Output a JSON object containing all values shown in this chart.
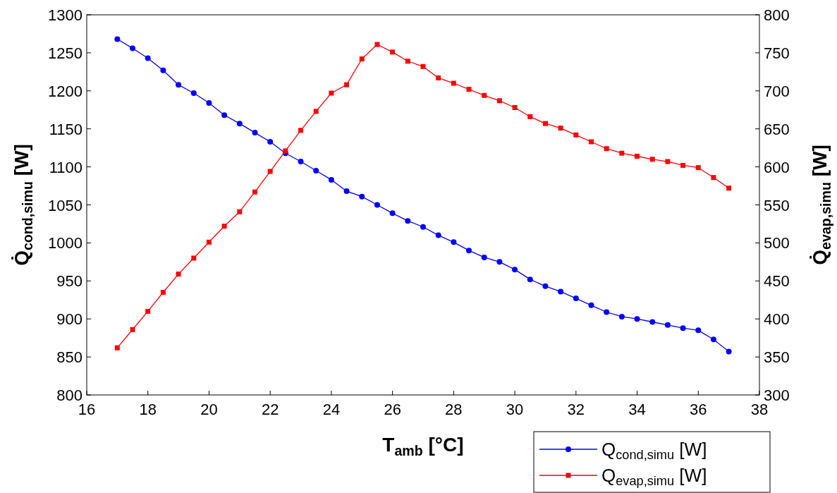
{
  "chart_data": {
    "type": "line",
    "xlabel": "T$_{amb}$ [°C]",
    "ylabel": "Q̇$_{cond,simu}$ [W]",
    "y2label": "Q̇$_{evap,simu}$ [W]",
    "x": [
      17,
      17.5,
      18,
      18.5,
      19,
      19.5,
      20,
      20.5,
      21,
      21.5,
      22,
      22.5,
      23,
      23.5,
      24,
      24.5,
      25,
      25.5,
      26,
      26.5,
      27,
      27.5,
      28,
      28.5,
      29,
      29.5,
      30,
      30.5,
      31,
      31.5,
      32,
      32.5,
      33,
      33.5,
      34,
      34.5,
      35,
      35.5,
      36,
      36.5,
      37
    ],
    "series": [
      {
        "name": "Q$_{cond,simu}$ [W]",
        "color": "#0000ff",
        "marker": "circle",
        "values": [
          1268,
          1256,
          1243,
          1227,
          1208,
          1197,
          1184,
          1168,
          1157,
          1145,
          1133,
          1118,
          1107,
          1095,
          1083,
          1068,
          1061,
          1050,
          1039,
          1029,
          1021,
          1010,
          1001,
          990,
          981,
          975,
          965,
          952,
          943,
          936,
          927,
          918,
          909,
          903,
          900,
          896,
          892,
          888,
          885,
          873,
          857
        ]
      },
      {
        "name": "Q$_{evap,simu}$ [W]",
        "color": "#ff0000",
        "marker": "square",
        "axis": "y2",
        "values": [
          362,
          386,
          410,
          435,
          459,
          480,
          501,
          522,
          541,
          567,
          594,
          621,
          648,
          673,
          697,
          708,
          742,
          761,
          751,
          739,
          732,
          717,
          710,
          702,
          694,
          687,
          678,
          666,
          657,
          651,
          642,
          633,
          624,
          618,
          614,
          610,
          607,
          602,
          599,
          586,
          572
        ]
      }
    ],
    "xlim": [
      16,
      38
    ],
    "xticks": [
      16,
      18,
      20,
      22,
      24,
      26,
      28,
      30,
      32,
      34,
      36,
      38
    ],
    "ylim": [
      800,
      1300
    ],
    "yticks": [
      800,
      850,
      900,
      950,
      1000,
      1050,
      1100,
      1150,
      1200,
      1250,
      1300
    ],
    "y2lim": [
      300,
      800
    ],
    "y2ticks": [
      300,
      350,
      400,
      450,
      500,
      550,
      600,
      650,
      700,
      750,
      800
    ],
    "grid": false,
    "legend": "bottom right",
    "line_style": "solid"
  }
}
